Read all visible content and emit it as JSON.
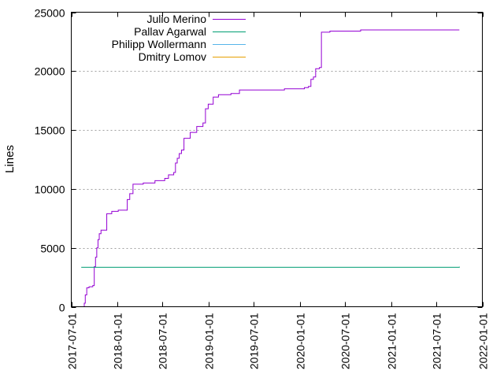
{
  "chart_data": {
    "type": "line",
    "title": "",
    "xlabel": "",
    "ylabel": "Lines",
    "x_type": "date",
    "xlim": [
      "2017-07-01",
      "2022-01-01"
    ],
    "ylim": [
      0,
      25000
    ],
    "x_ticks": [
      "2017-07-01",
      "2018-01-01",
      "2018-07-01",
      "2019-01-01",
      "2019-07-01",
      "2020-01-01",
      "2020-07-01",
      "2021-01-01",
      "2021-07-01",
      "2022-01-01"
    ],
    "y_ticks": [
      0,
      5000,
      10000,
      15000,
      20000,
      25000
    ],
    "grid": "horizontal dotted",
    "legend_position": "top-left",
    "series": [
      {
        "name": "Julio Merino",
        "color": "#9400d3",
        "step": true,
        "points": [
          [
            "2017-08-18",
            0
          ],
          [
            "2017-08-22",
            300
          ],
          [
            "2017-08-26",
            1000
          ],
          [
            "2017-09-01",
            1600
          ],
          [
            "2017-09-10",
            1700
          ],
          [
            "2017-09-25",
            1800
          ],
          [
            "2017-10-01",
            3400
          ],
          [
            "2017-10-06",
            4200
          ],
          [
            "2017-10-11",
            5000
          ],
          [
            "2017-10-16",
            5700
          ],
          [
            "2017-10-21",
            6200
          ],
          [
            "2017-10-28",
            6500
          ],
          [
            "2017-11-20",
            7900
          ],
          [
            "2017-12-10",
            8100
          ],
          [
            "2018-01-05",
            8200
          ],
          [
            "2018-02-10",
            9100
          ],
          [
            "2018-02-20",
            9600
          ],
          [
            "2018-03-05",
            10400
          ],
          [
            "2018-04-15",
            10500
          ],
          [
            "2018-06-01",
            10700
          ],
          [
            "2018-07-10",
            10900
          ],
          [
            "2018-07-25",
            11200
          ],
          [
            "2018-08-15",
            11400
          ],
          [
            "2018-08-22",
            12200
          ],
          [
            "2018-08-29",
            12600
          ],
          [
            "2018-09-06",
            13000
          ],
          [
            "2018-09-15",
            13300
          ],
          [
            "2018-09-25",
            14300
          ],
          [
            "2018-10-20",
            14800
          ],
          [
            "2018-11-15",
            15300
          ],
          [
            "2018-12-10",
            15600
          ],
          [
            "2018-12-20",
            16800
          ],
          [
            "2018-12-31",
            17200
          ],
          [
            "2019-01-20",
            17800
          ],
          [
            "2019-02-10",
            18000
          ],
          [
            "2019-04-01",
            18100
          ],
          [
            "2019-05-05",
            18400
          ],
          [
            "2019-07-01",
            18400
          ],
          [
            "2019-11-01",
            18500
          ],
          [
            "2020-01-01",
            18500
          ],
          [
            "2020-01-20",
            18600
          ],
          [
            "2020-02-05",
            18700
          ],
          [
            "2020-02-15",
            19300
          ],
          [
            "2020-02-25",
            19500
          ],
          [
            "2020-03-05",
            20200
          ],
          [
            "2020-03-20",
            20300
          ],
          [
            "2020-03-28",
            23300
          ],
          [
            "2020-05-01",
            23400
          ],
          [
            "2020-09-01",
            23500
          ],
          [
            "2021-10-01",
            23500
          ]
        ]
      },
      {
        "name": "Pallav Agarwal",
        "color": "#009e73",
        "step": true,
        "points": [
          [
            "2017-08-10",
            3350
          ],
          [
            "2021-10-01",
            3400
          ]
        ]
      },
      {
        "name": "Philipp Wollermann",
        "color": "#56b4e9",
        "step": true,
        "points": []
      },
      {
        "name": "Dmitry Lomov",
        "color": "#e69f00",
        "step": true,
        "points": []
      }
    ]
  }
}
